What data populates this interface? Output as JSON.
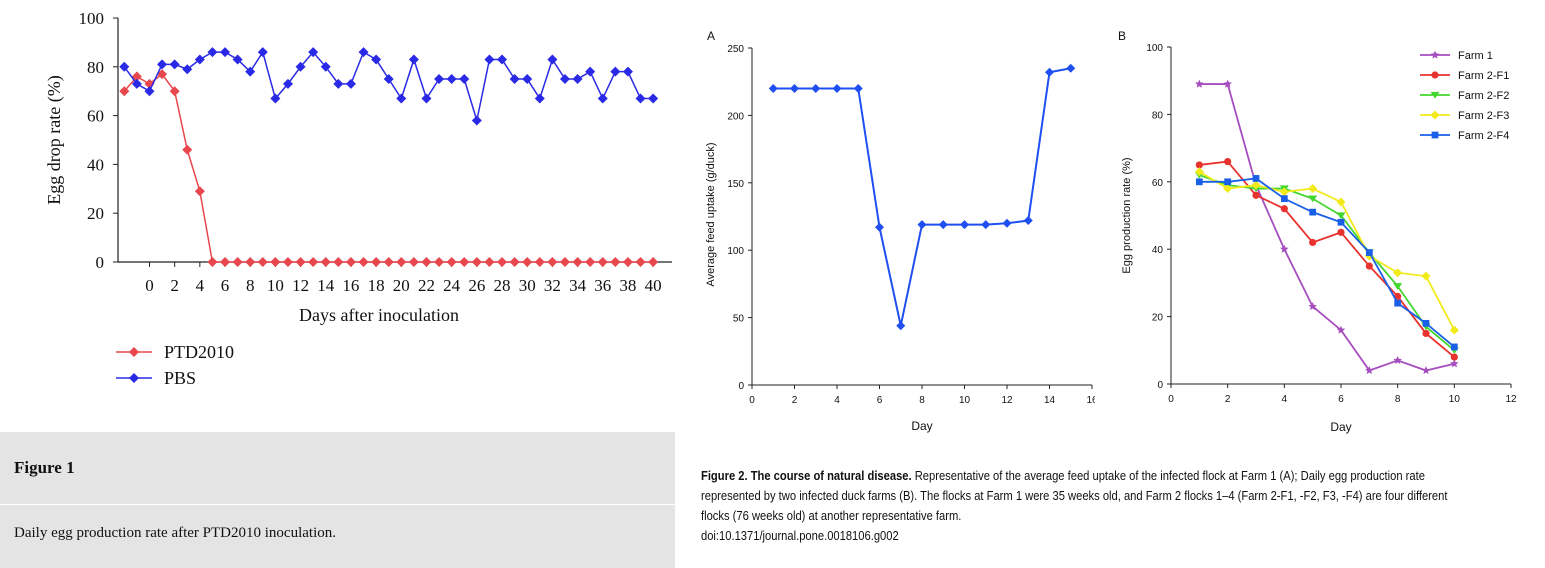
{
  "figure1": {
    "caption_title": "Figure 1",
    "caption_text": "Daily egg production rate after PTD2010 inoculation."
  },
  "figure2": {
    "caption_bold": "Figure 2. The course of natural disease.",
    "caption_line1": " Representative of the average feed uptake of the infected flock at Farm 1 (A); Daily egg production rate",
    "caption_line2": "represented by two infected duck farms (B). The flocks at Farm 1 were 35 weeks old, and Farm 2 flocks 1–4 (Farm 2-F1, -F2, F3, -F4) are four different",
    "caption_line3": "flocks (76 weeks old) at another representative farm.",
    "caption_line4": "doi:10.1371/journal.pone.0018106.g002"
  },
  "chart_data": [
    {
      "id": "fig1",
      "type": "line",
      "title": "",
      "xlabel": "Days after inoculation",
      "ylabel": "Egg drop rate (%)",
      "xlim": [
        -2.5,
        41.5
      ],
      "ylim": [
        0,
        100
      ],
      "xticks": [
        0,
        2,
        4,
        6,
        8,
        10,
        12,
        14,
        16,
        18,
        20,
        22,
        24,
        26,
        28,
        30,
        32,
        34,
        36,
        38,
        40
      ],
      "yticks": [
        0,
        20,
        40,
        60,
        80,
        100
      ],
      "legend_position": "bottom-left",
      "series": [
        {
          "name": "PTD2010",
          "color": "#e8474e",
          "marker": "diamond",
          "x": [
            -2,
            -1,
            0,
            1,
            2,
            3,
            4,
            5,
            6,
            7,
            8,
            9,
            10,
            11,
            12,
            13,
            14,
            15,
            16,
            17,
            18,
            19,
            20,
            21,
            22,
            23,
            24,
            25,
            26,
            27,
            28,
            29,
            30,
            31,
            32,
            33,
            34,
            35,
            36,
            37,
            38,
            39,
            40
          ],
          "y": [
            70,
            76,
            73,
            77,
            70,
            46,
            29,
            0,
            0,
            0,
            0,
            0,
            0,
            0,
            0,
            0,
            0,
            0,
            0,
            0,
            0,
            0,
            0,
            0,
            0,
            0,
            0,
            0,
            0,
            0,
            0,
            0,
            0,
            0,
            0,
            0,
            0,
            0,
            0,
            0,
            0,
            0,
            0
          ]
        },
        {
          "name": "PBS",
          "color": "#2a2ae6",
          "marker": "diamond",
          "x": [
            -2,
            -1,
            0,
            1,
            2,
            3,
            4,
            5,
            6,
            7,
            8,
            9,
            10,
            11,
            12,
            13,
            14,
            15,
            16,
            17,
            18,
            19,
            20,
            21,
            22,
            23,
            24,
            25,
            26,
            27,
            28,
            29,
            30,
            31,
            32,
            33,
            34,
            35,
            36,
            37,
            38,
            39,
            40
          ],
          "y": [
            80,
            73,
            70,
            81,
            81,
            79,
            83,
            86,
            86,
            83,
            78,
            86,
            67,
            73,
            80,
            86,
            80,
            73,
            73,
            86,
            83,
            75,
            67,
            83,
            67,
            75,
            75,
            75,
            58,
            83,
            83,
            75,
            75,
            67,
            83,
            75,
            75,
            78,
            67,
            78,
            78,
            67,
            67
          ]
        }
      ]
    },
    {
      "id": "fig2a",
      "type": "line",
      "panel_label": "A",
      "title": "",
      "xlabel": "Day",
      "ylabel": "Average feed uptake (g/duck)",
      "xlim": [
        0,
        16
      ],
      "ylim": [
        0,
        250
      ],
      "xticks": [
        0,
        2,
        4,
        6,
        8,
        10,
        12,
        14,
        16
      ],
      "yticks": [
        0,
        50,
        100,
        150,
        200,
        250
      ],
      "series": [
        {
          "name": "",
          "color": "#1f4ff0",
          "marker": "diamond",
          "x": [
            1,
            2,
            3,
            4,
            5,
            6,
            7,
            8,
            9,
            10,
            11,
            12,
            13,
            14,
            15
          ],
          "y": [
            220,
            220,
            220,
            220,
            220,
            117,
            44,
            119,
            119,
            119,
            119,
            120,
            122,
            232,
            235
          ]
        }
      ]
    },
    {
      "id": "fig2b",
      "type": "line",
      "panel_label": "B",
      "title": "",
      "xlabel": "Day",
      "ylabel": "Egg production rate (%)",
      "xlim": [
        0,
        12
      ],
      "ylim": [
        0,
        100
      ],
      "xticks": [
        0,
        2,
        4,
        6,
        8,
        10,
        12
      ],
      "yticks": [
        0,
        20,
        40,
        60,
        80,
        100
      ],
      "legend_position": "top-right",
      "x": [
        1,
        2,
        3,
        4,
        5,
        6,
        7,
        8,
        9,
        10
      ],
      "series": [
        {
          "name": "Farm 1",
          "color": "#a64dbf",
          "marker": "star",
          "values": [
            89,
            89,
            59,
            40,
            23,
            16,
            4,
            7,
            4,
            6
          ]
        },
        {
          "name": "Farm 2-F1",
          "color": "#e8322e",
          "marker": "circle",
          "values": [
            65,
            66,
            56,
            52,
            42,
            45,
            35,
            26,
            15,
            8
          ]
        },
        {
          "name": "Farm 2-F2",
          "color": "#43d62e",
          "marker": "triangle-down",
          "values": [
            62,
            59,
            58,
            58,
            55,
            50,
            39,
            29,
            17,
            10
          ]
        },
        {
          "name": "Farm 2-F3",
          "color": "#f2ea1a",
          "marker": "diamond",
          "values": [
            63,
            58,
            59,
            57,
            58,
            54,
            38,
            33,
            32,
            16
          ]
        },
        {
          "name": "Farm 2-F4",
          "color": "#1a5fe8",
          "marker": "square",
          "values": [
            60,
            60,
            61,
            55,
            51,
            48,
            39,
            24,
            18,
            11
          ]
        }
      ]
    }
  ]
}
